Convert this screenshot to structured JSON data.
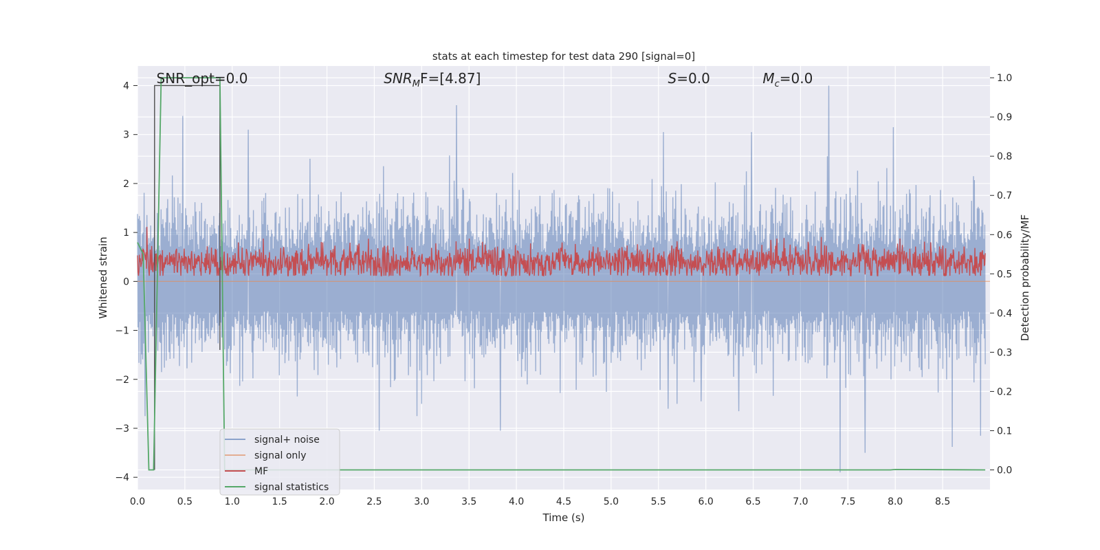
{
  "chart_data": {
    "type": "line",
    "title": "stats at each timestep for test data 290 [signal=0]",
    "xlabel": "Time (s)",
    "ylabel": "Whitened strain",
    "y2label": "Detection probability/MF",
    "xlim": [
      0.0,
      9.0
    ],
    "ylim": [
      -4.25,
      4.4
    ],
    "y2lim": [
      -0.05,
      1.03
    ],
    "x_ticks": [
      0.0,
      0.5,
      1.0,
      1.5,
      2.0,
      2.5,
      3.0,
      3.5,
      4.0,
      4.5,
      5.0,
      5.5,
      6.0,
      6.5,
      7.0,
      7.5,
      8.0,
      8.5
    ],
    "y_ticks": [
      -4,
      -3,
      -2,
      -1,
      0,
      1,
      2,
      3,
      4
    ],
    "y2_ticks": [
      0.0,
      0.1,
      0.2,
      0.3,
      0.4,
      0.5,
      0.6,
      0.7,
      0.8,
      0.9,
      1.0
    ],
    "grid": true,
    "legend_position": "lower-left",
    "annotations": [
      {
        "text": "SNR_opt=0.0",
        "x": 0.2,
        "y": 4.05
      },
      {
        "base": "SNR",
        "sub": "M",
        "rest": "F=[4.87]",
        "x": 2.6,
        "y": 4.05
      },
      {
        "text": "S=0.0",
        "italic_prefix": "S",
        "x": 5.6,
        "y": 4.05
      },
      {
        "base": "M",
        "sub": "c",
        "rest": "=0.0",
        "x": 6.6,
        "y": 4.05
      }
    ],
    "series": [
      {
        "name": "signal+ noise",
        "color": "#4c72b0",
        "axis": "left",
        "description": "dense whitened strain noise, approx. -1.9..2.4 typical with spikes",
        "n_points": 1800,
        "typical_high": 1.6,
        "typical_low": -1.3,
        "spikes": [
          {
            "x": 7.3,
            "y": 4.0
          },
          {
            "x": 3.37,
            "y": 3.6
          },
          {
            "x": 0.48,
            "y": 3.38
          },
          {
            "x": 7.42,
            "y": -3.9
          },
          {
            "x": 7.68,
            "y": -3.5
          },
          {
            "x": 8.6,
            "y": -3.38
          },
          {
            "x": 3.83,
            "y": -3.05
          },
          {
            "x": 2.55,
            "y": -3.05
          },
          {
            "x": 8.9,
            "y": -3.15
          },
          {
            "x": 0.08,
            "y": -2.75
          },
          {
            "x": 1.17,
            "y": 3.1
          },
          {
            "x": 5.55,
            "y": 3.05
          },
          {
            "x": 7.98,
            "y": 3.15
          },
          {
            "x": 6.48,
            "y": 3.05
          },
          {
            "x": 2.95,
            "y": -2.75
          },
          {
            "x": 5.6,
            "y": -2.6
          },
          {
            "x": 5.95,
            "y": -2.45
          },
          {
            "x": 6.35,
            "y": -2.65
          }
        ]
      },
      {
        "name": "signal only",
        "color": "#dd8452",
        "axis": "left",
        "x": [
          0.0,
          9.0
        ],
        "y": [
          0.0,
          0.0
        ]
      },
      {
        "name": "MF",
        "color": "#c44e52",
        "axis": "right",
        "description": "matched filter statistic fluctuating around ~0.53 between ~0.49 and ~0.58",
        "n_points": 1800,
        "mean": 0.53,
        "amplitude": 0.03,
        "peaks": [
          {
            "x": 0.1,
            "y": 0.62
          },
          {
            "x": 1.33,
            "y": 0.59
          },
          {
            "x": 3.5,
            "y": 0.59
          },
          {
            "x": 6.75,
            "y": 0.59
          },
          {
            "x": 8.05,
            "y": 0.59
          }
        ]
      },
      {
        "name": "signal statistics",
        "color": "#55a868",
        "axis": "right",
        "x": [
          0.0,
          0.06,
          0.12,
          0.17,
          0.25,
          0.35,
          0.6,
          0.87,
          0.92,
          0.95,
          1.2,
          2.0,
          3.0,
          4.0,
          5.0,
          6.0,
          7.0,
          7.95,
          8.0,
          8.95
        ],
        "y": [
          0.58,
          0.55,
          0.0,
          0.0,
          1.0,
          1.0,
          1.0,
          1.0,
          0.0,
          0.0,
          0.0,
          0.0,
          0.0,
          0.0,
          0.0,
          0.0,
          0.0,
          0.0,
          0.001,
          0.0
        ]
      },
      {
        "name": "",
        "color": "#4d4d4d",
        "axis": "left",
        "description": "dark vertical segment lines",
        "x": [
          0.18,
          0.18,
          0.87,
          0.87
        ],
        "y": [
          -3.85,
          4.0,
          4.0,
          -1.4
        ]
      }
    ]
  },
  "legend": [
    {
      "label": "signal+ noise",
      "color": "#4c72b0"
    },
    {
      "label": "signal only",
      "color": "#dd8452"
    },
    {
      "label": "MF",
      "color": "#c44e52"
    },
    {
      "label": "signal statistics",
      "color": "#55a868"
    }
  ],
  "colors": {
    "plot_background": "#eaeaf2",
    "grid": "#ffffff",
    "text": "#262626"
  }
}
